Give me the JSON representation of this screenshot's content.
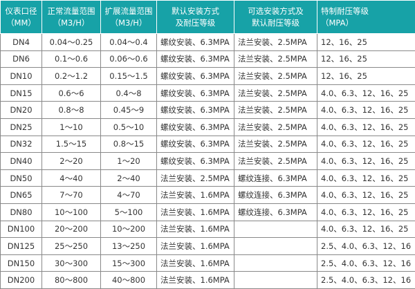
{
  "header": [
    {
      "l1": "仪表口径",
      "l2": "（MM）"
    },
    {
      "l1": "正常流量范围",
      "l2": "（M3/H）"
    },
    {
      "l1": "扩展流量范围",
      "l2": "（M3/H）"
    },
    {
      "l1": "默认安装方式",
      "l2": "及耐压等级"
    },
    {
      "l1": "可选安装方式及",
      "l2": "默认耐压等级"
    },
    {
      "l1": "特制耐压等级",
      "l2": "（MPA）"
    }
  ],
  "rows": [
    [
      "DN4",
      "0.04～0.25",
      "0.04～0.4",
      "螺纹安装、6.3MPA",
      "法兰安装、2.5MPA",
      "12、16、25"
    ],
    [
      "DN6",
      "0.1～0.6",
      "0.06～0.6",
      "螺纹安装、6.3MPA",
      "法兰安装、2.5MPA",
      "12、16、25"
    ],
    [
      "DN10",
      "0.2～1.2",
      "0.15～1.5",
      "螺纹安装、6.3MPA",
      "法兰安装、2.5MPA",
      "12、16、25"
    ],
    [
      "DN15",
      "0.6～6",
      "0.4～8",
      "螺纹安装、6.3MPA",
      "法兰安装、2.5MPA",
      "4.0、6.3、12、16、25"
    ],
    [
      "DN20",
      "0.8～8",
      "0.45～9",
      "螺纹安装、6.3MPA",
      "法兰安装、2.5MPA",
      "4.0、6.3、12、16、25"
    ],
    [
      "DN25",
      "1～10",
      "0.5～10",
      "螺纹安装、6.3MPA",
      "法兰安装、2.5MPA",
      "4.0、6.3、12、16、25"
    ],
    [
      "DN32",
      "1.5～15",
      "0.8～15",
      "螺纹安装、6.3MPA",
      "法兰安装、2.5MPA",
      "4.0、6.3、12、16、25"
    ],
    [
      "DN40",
      "2～20",
      "1～20",
      "螺纹安装、6.3MPA",
      "法兰安装、2.5MPA",
      "4.0、6.3、12、16、25"
    ],
    [
      "DN50",
      "4～40",
      "2～40",
      "法兰安装、2.5MPA",
      "螺纹连接、6.3MPA",
      "4.0、6.3、12、16、25"
    ],
    [
      "DN65",
      "7～70",
      "4～70",
      "法兰安装、1.6MPA",
      "螺纹连接、6.3MPA",
      "4.0、6.3、12、16、25"
    ],
    [
      "DN80",
      "10～100",
      "5～100",
      "法兰安装、1.6MPA",
      "螺纹连接、6.3MPA",
      "4.0、6.3、12、16、25"
    ],
    [
      "DN100",
      "20～200",
      "10～200",
      "法兰安装、1.6MPA",
      "",
      "4.0、6.3、12、16、25"
    ],
    [
      "DN125",
      "25～250",
      "13～250",
      "法兰安装、1.6MPA",
      "",
      "2.5、4.0、6.3、12、16"
    ],
    [
      "DN150",
      "30～300",
      "15～300",
      "法兰安装、1.6MPA",
      "",
      "2.5、4.0、6.3、12、16"
    ],
    [
      "DN200",
      "80～800",
      "40～800",
      "法兰安装、1.6MPA",
      "",
      "2.5、4.0、6.3、12、16"
    ]
  ],
  "colors": {
    "header_bg": "#17a2a7",
    "header_text": "#ffffff"
  }
}
